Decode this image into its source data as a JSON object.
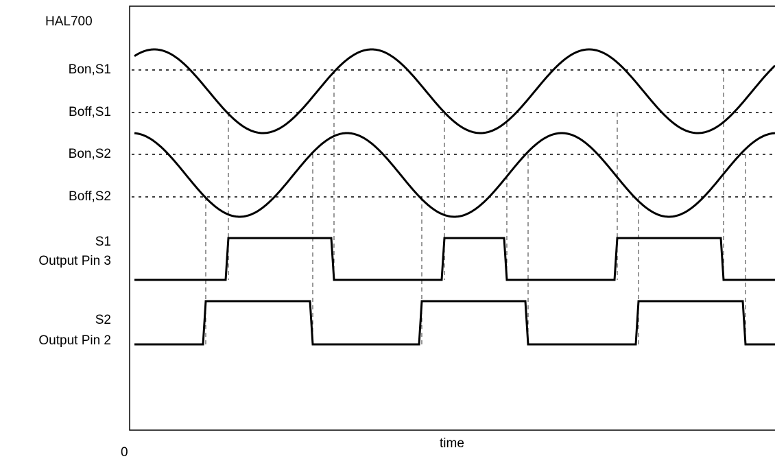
{
  "diagram": {
    "device": "HAL700",
    "levels": {
      "bon_s1": "Bon,S1",
      "boff_s1": "Boff,S1",
      "bon_s2": "Bon,S2",
      "boff_s2": "Boff,S2"
    },
    "outputs": {
      "s1_name": "S1",
      "s1_pin": "Output Pin 3",
      "s2_name": "S2",
      "s2_pin": "Output Pin 2"
    },
    "x_axis": {
      "label": "time",
      "origin": "0"
    },
    "colors": {
      "stroke": "#000000",
      "background": "#ffffff"
    }
  }
}
